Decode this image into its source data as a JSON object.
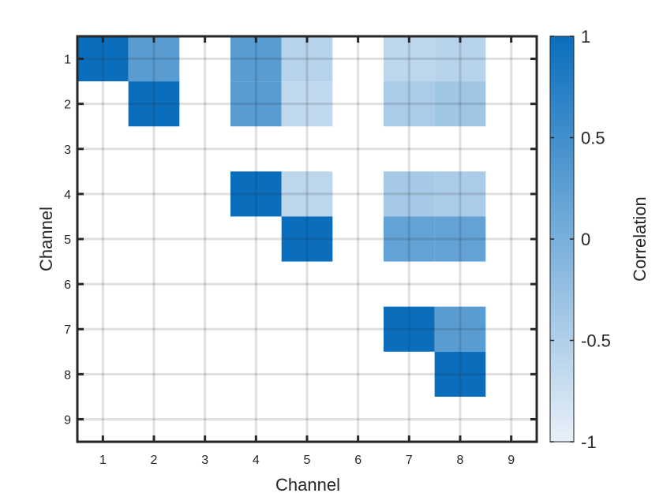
{
  "chart_data": {
    "type": "heatmap",
    "title": "",
    "xlabel": "Channel",
    "ylabel": "Channel",
    "x_categories": [
      "1",
      "2",
      "3",
      "4",
      "5",
      "6",
      "7",
      "8",
      "9"
    ],
    "y_categories": [
      "1",
      "2",
      "3",
      "4",
      "5",
      "6",
      "7",
      "8",
      "9"
    ],
    "grid": true,
    "colorbar": {
      "label": "Correlation",
      "range": [
        -1,
        1
      ],
      "ticks": [
        1,
        0.5,
        0,
        -0.5,
        -1
      ],
      "tick_labels": [
        "1",
        "0.5",
        "0",
        "-0.5",
        "-1"
      ],
      "color_low": "#e8f0f8",
      "color_high": "#0a6ebd"
    },
    "cells": [
      {
        "row": 1,
        "col": 1,
        "value": 1.0
      },
      {
        "row": 1,
        "col": 2,
        "value": 0.3
      },
      {
        "row": 1,
        "col": 4,
        "value": 0.3
      },
      {
        "row": 1,
        "col": 5,
        "value": -0.55
      },
      {
        "row": 1,
        "col": 7,
        "value": -0.6
      },
      {
        "row": 1,
        "col": 8,
        "value": -0.55
      },
      {
        "row": 2,
        "col": 2,
        "value": 1.0
      },
      {
        "row": 2,
        "col": 4,
        "value": 0.3
      },
      {
        "row": 2,
        "col": 5,
        "value": -0.65
      },
      {
        "row": 2,
        "col": 7,
        "value": -0.45
      },
      {
        "row": 2,
        "col": 8,
        "value": -0.35
      },
      {
        "row": 4,
        "col": 4,
        "value": 1.0
      },
      {
        "row": 4,
        "col": 5,
        "value": -0.6
      },
      {
        "row": 4,
        "col": 7,
        "value": -0.4
      },
      {
        "row": 4,
        "col": 8,
        "value": -0.45
      },
      {
        "row": 5,
        "col": 5,
        "value": 1.0
      },
      {
        "row": 5,
        "col": 7,
        "value": 0.2
      },
      {
        "row": 5,
        "col": 8,
        "value": 0.2
      },
      {
        "row": 7,
        "col": 7,
        "value": 1.0
      },
      {
        "row": 7,
        "col": 8,
        "value": 0.3
      },
      {
        "row": 8,
        "col": 8,
        "value": 1.0
      }
    ]
  }
}
